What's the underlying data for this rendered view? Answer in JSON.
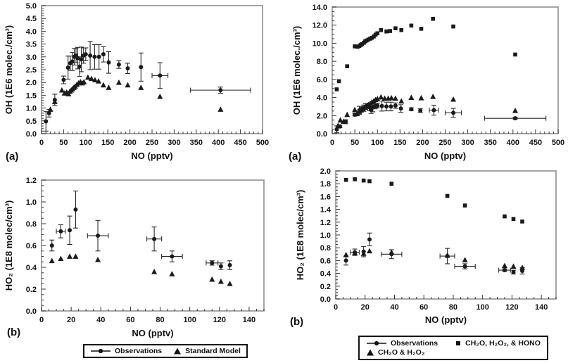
{
  "figure": {
    "background": "#ffffff",
    "ink": "#1a1a1a",
    "frame_color": "#8f8f8f",
    "error_bar_color": "#2a2a2a"
  },
  "chart_data": [
    {
      "id": "oh_vs_no_standard_model",
      "type": "scatter",
      "panel_label": "(a)",
      "xlabel": "NO (pptv)",
      "ylabel": "OH (1E6 molec./cm³)",
      "xlim": [
        0,
        500
      ],
      "ylim": [
        0,
        5.0
      ],
      "xtick_step": 50,
      "xminor_step": 10,
      "xtick_decimals": 0,
      "ytick_step": 0.5,
      "yminor_step": 0.1,
      "ytick_decimals": 1,
      "series": [
        {
          "name": "Observations",
          "marker": "circle",
          "points": [
            [
              10,
              0.48,
              0.38,
              0
            ],
            [
              17,
              0.8,
              0.15,
              0
            ],
            [
              30,
              1.32,
              0.22,
              0
            ],
            [
              50,
              2.1,
              0.15,
              0
            ],
            [
              60,
              2.58,
              0.45,
              0
            ],
            [
              65,
              2.75,
              0.28,
              0
            ],
            [
              70,
              2.82,
              0.35,
              0
            ],
            [
              74,
              3.0,
              0.32,
              0
            ],
            [
              78,
              3.05,
              0.28,
              0
            ],
            [
              82,
              2.95,
              0.42,
              0
            ],
            [
              86,
              2.62,
              0.38,
              0
            ],
            [
              90,
              2.9,
              0.48,
              0
            ],
            [
              95,
              3.05,
              0.3,
              0
            ],
            [
              100,
              3.1,
              0.25,
              0
            ],
            [
              110,
              3.05,
              0.55,
              0
            ],
            [
              120,
              3.0,
              0.48,
              0
            ],
            [
              130,
              3.0,
              0.48,
              0
            ],
            [
              140,
              3.1,
              0.3,
              0
            ],
            [
              152,
              2.78,
              0.42,
              0
            ],
            [
              175,
              2.7,
              0.15,
              0
            ],
            [
              195,
              2.55,
              0.2,
              0
            ],
            [
              225,
              2.6,
              0.55,
              0
            ],
            [
              268,
              2.27,
              0.5,
              18
            ],
            [
              405,
              1.7,
              0.12,
              68
            ]
          ]
        },
        {
          "name": "Standard Model",
          "marker": "triangle",
          "points": [
            [
              20,
              0.95
            ],
            [
              30,
              1.25
            ],
            [
              46,
              1.7
            ],
            [
              52,
              1.58
            ],
            [
              57,
              1.62
            ],
            [
              61,
              1.55
            ],
            [
              64,
              1.65
            ],
            [
              67,
              1.7
            ],
            [
              70,
              1.75
            ],
            [
              73,
              1.8
            ],
            [
              76,
              1.85
            ],
            [
              80,
              1.92
            ],
            [
              84,
              1.98
            ],
            [
              88,
              2.02
            ],
            [
              92,
              1.98
            ],
            [
              96,
              2.02
            ],
            [
              105,
              2.2
            ],
            [
              113,
              2.15
            ],
            [
              121,
              2.1
            ],
            [
              129,
              2.05
            ],
            [
              140,
              1.9
            ],
            [
              152,
              1.8
            ],
            [
              175,
              2.0
            ],
            [
              195,
              1.9
            ],
            [
              225,
              1.8
            ],
            [
              268,
              1.45
            ],
            [
              405,
              0.95
            ]
          ]
        }
      ]
    },
    {
      "id": "oh_vs_no_constrained_models",
      "type": "scatter",
      "panel_label": "(a)",
      "xlabel": "NO (pptv)",
      "ylabel": "OH (1E6 molec./cm³)",
      "xlim": [
        0,
        500
      ],
      "ylim": [
        0,
        14.0
      ],
      "xtick_step": 50,
      "xminor_step": 10,
      "xtick_decimals": 0,
      "ytick_step": 2.0,
      "yminor_step": 0.5,
      "ytick_decimals": 1,
      "series": [
        {
          "name": "Observations",
          "marker": "circle",
          "points": [
            [
              10,
              0.48,
              0.38,
              0
            ],
            [
              17,
              0.8,
              0.15,
              0
            ],
            [
              30,
              1.32,
              0.22,
              0
            ],
            [
              50,
              2.1,
              0.15,
              0
            ],
            [
              60,
              2.58,
              0.45,
              0
            ],
            [
              65,
              2.75,
              0.28,
              0
            ],
            [
              70,
              2.82,
              0.35,
              0
            ],
            [
              74,
              3.0,
              0.32,
              0
            ],
            [
              78,
              3.05,
              0.28,
              0
            ],
            [
              82,
              2.95,
              0.42,
              0
            ],
            [
              86,
              2.62,
              0.38,
              0
            ],
            [
              90,
              2.9,
              0.48,
              0
            ],
            [
              95,
              3.05,
              0.3,
              0
            ],
            [
              100,
              3.1,
              0.25,
              0
            ],
            [
              110,
              3.05,
              0.55,
              0
            ],
            [
              120,
              3.0,
              0.48,
              0
            ],
            [
              130,
              3.0,
              0.48,
              0
            ],
            [
              140,
              3.1,
              0.3,
              0
            ],
            [
              152,
              2.78,
              0.42,
              0
            ],
            [
              175,
              2.7,
              0.15,
              0
            ],
            [
              195,
              2.55,
              0.2,
              0
            ],
            [
              225,
              2.6,
              0.55,
              10
            ],
            [
              268,
              2.3,
              0.5,
              18
            ],
            [
              405,
              1.7,
              0.12,
              68
            ]
          ]
        },
        {
          "name": "CH₂O, H₂O₂, & HONO",
          "marker": "square",
          "points": [
            [
              10,
              4.9
            ],
            [
              15,
              5.8
            ],
            [
              33,
              7.45
            ],
            [
              50,
              9.65
            ],
            [
              56,
              9.6
            ],
            [
              60,
              9.7
            ],
            [
              63,
              9.8
            ],
            [
              66,
              9.9
            ],
            [
              70,
              10.05
            ],
            [
              73,
              10.2
            ],
            [
              76,
              10.3
            ],
            [
              80,
              10.4
            ],
            [
              84,
              10.5
            ],
            [
              88,
              10.6
            ],
            [
              92,
              10.75
            ],
            [
              96,
              10.95
            ],
            [
              100,
              11.1
            ],
            [
              108,
              11.45
            ],
            [
              120,
              11.3
            ],
            [
              128,
              11.35
            ],
            [
              140,
              11.65
            ],
            [
              153,
              11.45
            ],
            [
              175,
              11.95
            ],
            [
              197,
              11.6
            ],
            [
              223,
              12.7
            ],
            [
              268,
              11.85
            ],
            [
              405,
              8.75
            ]
          ]
        },
        {
          "name": "CH₂O & H₂O₂",
          "marker": "triangle",
          "points": [
            [
              13,
              0.9
            ],
            [
              18,
              1.5
            ],
            [
              25,
              1.35
            ],
            [
              33,
              2.1
            ],
            [
              50,
              2.65
            ],
            [
              55,
              2.2
            ],
            [
              60,
              2.45
            ],
            [
              64,
              2.6
            ],
            [
              68,
              2.75
            ],
            [
              72,
              2.9
            ],
            [
              76,
              3.05
            ],
            [
              80,
              3.2
            ],
            [
              84,
              3.35
            ],
            [
              88,
              3.5
            ],
            [
              92,
              3.6
            ],
            [
              96,
              3.75
            ],
            [
              100,
              3.85
            ],
            [
              108,
              4.05
            ],
            [
              116,
              3.9
            ],
            [
              124,
              3.9
            ],
            [
              131,
              3.95
            ],
            [
              140,
              3.9
            ],
            [
              153,
              3.6
            ],
            [
              175,
              4.0
            ],
            [
              197,
              3.95
            ],
            [
              223,
              4.1
            ],
            [
              268,
              3.8
            ],
            [
              405,
              2.55
            ]
          ]
        }
      ]
    },
    {
      "id": "ho2_vs_no_standard_model",
      "type": "scatter",
      "panel_label": "(b)",
      "xlabel": "NO (pptv)",
      "ylabel": "HO₂ (1E8 molec/cm³)",
      "xlim": [
        0,
        150
      ],
      "ylim": [
        0,
        1.2
      ],
      "xtick_step": 20,
      "xminor_step": 5,
      "xtick_decimals": 0,
      "ytick_step": 0.2,
      "yminor_step": 0.05,
      "ytick_decimals": 1,
      "series": [
        {
          "name": "Observations",
          "marker": "circle",
          "points": [
            [
              7,
              0.6,
              0.05,
              0
            ],
            [
              13,
              0.73,
              0.06,
              3
            ],
            [
              19,
              0.74,
              0.13,
              0
            ],
            [
              23,
              0.93,
              0.17,
              0
            ],
            [
              38,
              0.69,
              0.14,
              7
            ],
            [
              76,
              0.66,
              0.11,
              5
            ],
            [
              88,
              0.5,
              0.05,
              7
            ],
            [
              115,
              0.44,
              0.02,
              4
            ],
            [
              121,
              0.41,
              0.03,
              0
            ],
            [
              127,
              0.42,
              0.04,
              0
            ]
          ]
        },
        {
          "name": "Standard Model",
          "marker": "triangle",
          "points": [
            [
              7,
              0.46
            ],
            [
              13,
              0.48
            ],
            [
              19,
              0.5
            ],
            [
              23,
              0.5
            ],
            [
              38,
              0.47
            ],
            [
              76,
              0.36
            ],
            [
              88,
              0.34
            ],
            [
              115,
              0.29
            ],
            [
              121,
              0.27
            ],
            [
              127,
              0.25
            ]
          ]
        }
      ]
    },
    {
      "id": "ho2_vs_no_constrained_models",
      "type": "scatter",
      "panel_label": "(b)",
      "xlabel": "NO (pptv)",
      "ylabel": "HO₂ (1E8 molec/cm³)",
      "xlim": [
        0,
        150
      ],
      "ylim": [
        0,
        2.0
      ],
      "xtick_step": 20,
      "xminor_step": 5,
      "xtick_decimals": 0,
      "ytick_step": 0.2,
      "yminor_step": 0.05,
      "ytick_decimals": 1,
      "series": [
        {
          "name": "Observations",
          "marker": "circle",
          "points": [
            [
              7,
              0.6,
              0.07,
              0
            ],
            [
              13,
              0.73,
              0.05,
              3
            ],
            [
              19,
              0.74,
              0.08,
              0
            ],
            [
              23,
              0.93,
              0.1,
              0
            ],
            [
              38,
              0.7,
              0.07,
              7
            ],
            [
              76,
              0.67,
              0.12,
              5
            ],
            [
              88,
              0.51,
              0.04,
              7
            ],
            [
              115,
              0.45,
              0.02,
              4
            ],
            [
              121,
              0.42,
              0.03,
              0
            ],
            [
              127,
              0.44,
              0.05,
              0
            ]
          ]
        },
        {
          "name": "CH₂O, H₂O₂, & HONO",
          "marker": "square",
          "points": [
            [
              7,
              1.86
            ],
            [
              13,
              1.87
            ],
            [
              19,
              1.85
            ],
            [
              23,
              1.84
            ],
            [
              38,
              1.8
            ],
            [
              76,
              1.61
            ],
            [
              88,
              1.46
            ],
            [
              115,
              1.29
            ],
            [
              121,
              1.25
            ],
            [
              127,
              1.21
            ]
          ]
        },
        {
          "name": "CH₂O & H₂O₂",
          "marker": "triangle",
          "points": [
            [
              7,
              0.69
            ],
            [
              13,
              0.72
            ],
            [
              19,
              0.71
            ],
            [
              23,
              0.75
            ],
            [
              38,
              0.73
            ],
            [
              76,
              0.68
            ],
            [
              88,
              0.61
            ],
            [
              115,
              0.52
            ],
            [
              121,
              0.51
            ],
            [
              127,
              0.49
            ]
          ]
        }
      ]
    }
  ],
  "legends": [
    {
      "entries": [
        {
          "marker": "circle-line",
          "label": "Observations"
        },
        {
          "marker": "triangle",
          "label": "Standard Model"
        }
      ]
    },
    {
      "entries": [
        {
          "marker": "circle-line",
          "label": "Observations"
        },
        {
          "marker": "square",
          "label": "CH₂O, H₂O₂, & HONO"
        },
        {
          "marker": "triangle",
          "label": "CH₂O & H₂O₂"
        }
      ]
    }
  ]
}
